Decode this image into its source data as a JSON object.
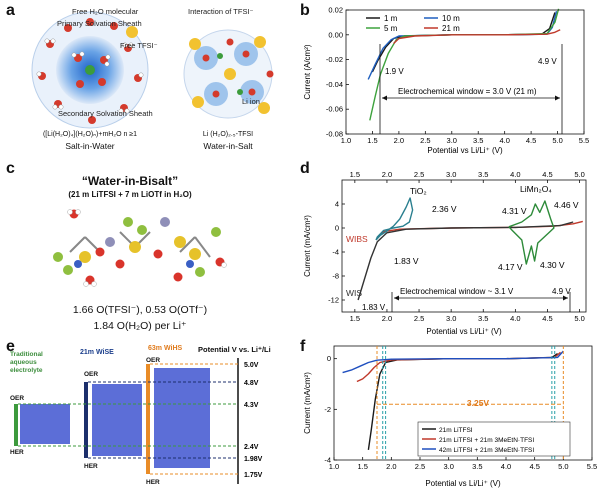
{
  "panels": {
    "a": {
      "label": "a",
      "left": {
        "title": "Salt-in-Water",
        "formula": "([Li(H₂O)₄](H₂O)ₙ)+mH₂O n ≥1",
        "annotations": [
          "Primary Solvation Sheath",
          "Free H₂O molecular",
          "Free TFSI⁻",
          "Secondary Solvation Sheath"
        ]
      },
      "right": {
        "title": "Water-in-Salt",
        "formula": "Li (H₂O)₂.₅-TFSI",
        "annotations": [
          "Interaction of TFSI⁻",
          "Li ion"
        ]
      }
    },
    "b": {
      "label": "b"
    },
    "c": {
      "label": "c",
      "title": "“Water-in-Bisalt”",
      "subtitle": "(21 m LiTFSI + 7 m LiOTf in H₂O)",
      "line1": "1.66 O(TFSI⁻), 0.53 O(OTf⁻)",
      "line2": "1.84 O(H₂O) per Li⁺"
    },
    "d": {
      "label": "d"
    },
    "e": {
      "label": "e",
      "header": "Potential V vs. Li⁺/Li",
      "col_traditional": "Traditional aqueous electrolyte",
      "col_wise": "21m WiSE",
      "col_wihs": "63m WiHS",
      "oer": "OER",
      "her": "HER",
      "ticks": [
        "5.0V",
        "4.8V",
        "4.3V",
        "2.4V",
        "1.98V",
        "1.75V"
      ]
    },
    "f": {
      "label": "f"
    }
  },
  "chart_data": [
    {
      "id": "b",
      "type": "line",
      "xlabel": "Potential vs Li/Li⁺ (V)",
      "ylabel": "Current (A/cm²)",
      "xlim": [
        1.0,
        5.5
      ],
      "ylim": [
        -0.08,
        0.02
      ],
      "xticks": [
        1.0,
        1.5,
        2.0,
        2.5,
        3.0,
        3.5,
        4.0,
        4.5,
        5.0,
        5.5
      ],
      "yticks": [
        0.02,
        0.0,
        -0.02,
        -0.04,
        -0.06,
        -0.08
      ],
      "xtick_labels": [
        "1.0",
        "1.5",
        "2.0",
        "2.5",
        "3.0",
        "3.5",
        "4.0",
        "4.5",
        "5.0",
        "5.5"
      ],
      "ytick_labels": [
        "0.02",
        "0.00",
        "-0.02",
        "-0.04",
        "-0.06",
        "-0.08"
      ],
      "series": [
        {
          "name": "1 m",
          "color": "#1a1a1a",
          "x": [
            1.5,
            1.6,
            1.75,
            1.9,
            2.1,
            3.0,
            4.0,
            4.7,
            4.85,
            4.95
          ],
          "y": [
            -0.03,
            -0.021,
            -0.01,
            -0.003,
            -0.001,
            0.0,
            0.0,
            0.0005,
            0.005,
            0.018
          ]
        },
        {
          "name": "10 m",
          "color": "#1f5fbf",
          "x": [
            1.42,
            1.55,
            1.7,
            1.85,
            2.0,
            3.0,
            4.0,
            4.8,
            4.9,
            4.98
          ],
          "y": [
            -0.036,
            -0.024,
            -0.011,
            -0.004,
            -0.001,
            0.0,
            0.0,
            0.0005,
            0.006,
            0.019
          ]
        },
        {
          "name": "5 m",
          "color": "#3da23d",
          "x": [
            1.45,
            1.55,
            1.65,
            1.8,
            1.95,
            2.1,
            3.0,
            4.0,
            4.8,
            4.95,
            5.02
          ],
          "y": [
            -0.069,
            -0.05,
            -0.032,
            -0.015,
            -0.004,
            -0.001,
            0.0,
            0.0,
            0.001,
            0.01,
            0.021
          ]
        },
        {
          "name": "21 m",
          "color": "#c0392b",
          "x": [
            1.9,
            2.0,
            2.3,
            3.0,
            4.0,
            4.8,
            4.95,
            5.05
          ],
          "y": [
            -0.007,
            -0.003,
            -0.001,
            0.0,
            0.0,
            0.0005,
            0.002,
            0.004
          ]
        }
      ],
      "annotations": [
        "1.9 V",
        "4.9 V",
        "Electrochemical window = 3.0 V (21 m)"
      ],
      "legend": "top-left"
    },
    {
      "id": "d",
      "type": "line",
      "xlabel": "Potential vs Li/Li⁺ (V)",
      "ylabel": "Current (mA/cm²)",
      "xlim": [
        1.3,
        5.1
      ],
      "ylim": [
        -14,
        8
      ],
      "xticks": [
        1.5,
        2.0,
        2.5,
        3.0,
        3.5,
        4.0,
        4.5,
        5.0
      ],
      "yticks": [
        4,
        0,
        -4,
        -8,
        -12
      ],
      "xtick_labels": [
        "1.5",
        "2.0",
        "2.5",
        "3.0",
        "3.5",
        "4.0",
        "4.5",
        "5.0"
      ],
      "ytick_labels": [
        "4",
        "0",
        "-4",
        "-8",
        "-12"
      ],
      "series": [
        {
          "name": "WIBS",
          "color": "#c0392b",
          "x": [
            1.85,
            1.95,
            2.2,
            3.0,
            4.0,
            4.6,
            4.9,
            5.05
          ],
          "y": [
            -1.6,
            -0.6,
            -0.2,
            0.0,
            0.1,
            0.3,
            0.7,
            1.1
          ]
        },
        {
          "name": "WIS",
          "color": "#333333",
          "x": [
            1.55,
            1.65,
            1.75,
            1.85,
            2.0,
            2.3,
            3.0,
            4.0,
            4.7,
            4.9
          ],
          "y": [
            -12.0,
            -8.5,
            -5.0,
            -2.3,
            -0.8,
            -0.2,
            0.0,
            0.1,
            0.4,
            1.0
          ]
        },
        {
          "name": "TiO₂",
          "color": "#2a7f8f",
          "x": [
            1.83,
            1.9,
            2.0,
            2.1,
            2.2,
            2.3,
            2.36,
            2.4,
            2.35,
            2.25,
            2.1,
            1.95,
            1.85,
            1.83
          ],
          "y": [
            -2.0,
            -1.2,
            -0.5,
            0.3,
            1.5,
            3.5,
            5.0,
            3.0,
            1.0,
            0.3,
            0.0,
            -0.4,
            -1.5,
            -2.0
          ]
        },
        {
          "name": "LiMn₂O₄",
          "color": "#2e8b3a",
          "x": [
            3.9,
            4.1,
            4.25,
            4.31,
            4.38,
            4.46,
            4.55,
            4.6,
            4.5,
            4.35,
            4.3,
            4.25,
            4.17,
            4.1,
            3.95,
            3.9
          ],
          "y": [
            0.2,
            1.0,
            2.2,
            4.0,
            2.6,
            4.5,
            1.5,
            0.0,
            -1.0,
            -2.5,
            -5.5,
            -3.0,
            -6.0,
            -2.0,
            -0.4,
            0.2
          ]
        }
      ],
      "annotations": [
        "TiO₂",
        "2.36 V",
        "LiMn₂O₄",
        "4.31 V",
        "4.46 V",
        "4.17 V",
        "4.30 V",
        "1.83 V",
        "WIBS",
        "WIS",
        "Electrochemical window ~ 3.1 V",
        "4.9 V"
      ]
    },
    {
      "id": "f",
      "type": "line",
      "xlabel": "Potential vs Li/Li⁺ (V)",
      "ylabel": "Current  (mA/cm²)",
      "xlim": [
        1.0,
        5.5
      ],
      "ylim": [
        -4,
        0.5
      ],
      "xticks": [
        1.0,
        1.5,
        2.0,
        2.5,
        3.0,
        3.5,
        4.0,
        4.5,
        5.0,
        5.5
      ],
      "yticks": [
        0,
        -2,
        -4
      ],
      "xtick_labels": [
        "1.0",
        "1.5",
        "2.0",
        "2.5",
        "3.0",
        "3.5",
        "4.0",
        "4.5",
        "5.0",
        "5.5"
      ],
      "ytick_labels": [
        "0",
        "-2",
        "-4"
      ],
      "series": [
        {
          "name": "21m LiTFSI",
          "color": "#1a1a1a",
          "x": [
            1.6,
            1.65,
            1.72,
            1.8,
            1.9,
            2.1,
            3.0,
            4.0,
            4.8,
            4.9
          ],
          "y": [
            -3.6,
            -2.8,
            -1.6,
            -0.6,
            -0.15,
            -0.05,
            0.0,
            0.0,
            0.05,
            0.2
          ]
        },
        {
          "name": "21m LiTFSI + 21m 3MeEtN·TFSI",
          "color": "#c0392b",
          "x": [
            1.4,
            1.5,
            1.6,
            1.7,
            1.8,
            2.0,
            3.0,
            4.0,
            4.85,
            4.95
          ],
          "y": [
            -0.9,
            -0.8,
            -0.6,
            -0.35,
            -0.15,
            -0.05,
            0.0,
            0.0,
            0.05,
            0.25
          ]
        },
        {
          "name": "42m LiTFSI + 21m 3MeEtN·TFSI",
          "color": "#1f4fbf",
          "x": [
            1.15,
            1.3,
            1.45,
            1.6,
            1.75,
            2.0,
            3.0,
            4.0,
            4.9,
            5.0
          ],
          "y": [
            -0.55,
            -0.45,
            -0.3,
            -0.15,
            -0.06,
            -0.02,
            0.0,
            0.0,
            0.05,
            0.3
          ]
        }
      ],
      "annotations": [
        "3.25V"
      ],
      "legend": "bottom-center"
    }
  ]
}
